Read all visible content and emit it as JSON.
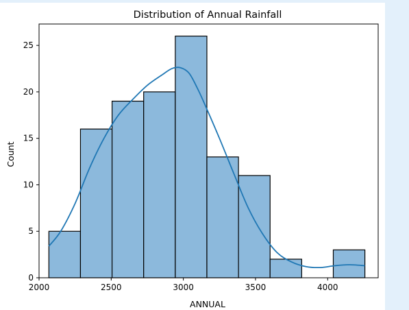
{
  "chart_data": {
    "type": "bar",
    "title": "Distribution of Annual Rainfall",
    "xlabel": "ANNUAL",
    "ylabel": "Count",
    "xlim": [
      2000,
      4350
    ],
    "ylim": [
      0,
      27.3
    ],
    "xticks": [
      2000,
      2500,
      3000,
      3500,
      4000
    ],
    "yticks": [
      0,
      5,
      10,
      15,
      20,
      25
    ],
    "bins": [
      {
        "start": 2068,
        "end": 2287,
        "count": 5
      },
      {
        "start": 2287,
        "end": 2506,
        "count": 16
      },
      {
        "start": 2506,
        "end": 2725,
        "count": 19
      },
      {
        "start": 2725,
        "end": 2944,
        "count": 20
      },
      {
        "start": 2944,
        "end": 3163,
        "count": 26
      },
      {
        "start": 3163,
        "end": 3382,
        "count": 13
      },
      {
        "start": 3382,
        "end": 3601,
        "count": 11
      },
      {
        "start": 3601,
        "end": 3820,
        "count": 2
      },
      {
        "start": 3820,
        "end": 4039,
        "count": 0
      },
      {
        "start": 4039,
        "end": 4258,
        "count": 3
      }
    ],
    "kde": {
      "x": [
        2068,
        2150,
        2250,
        2350,
        2450,
        2550,
        2650,
        2750,
        2850,
        2920,
        2980,
        3040,
        3100,
        3150,
        3250,
        3350,
        3450,
        3550,
        3650,
        3750,
        3850,
        3950,
        4050,
        4150,
        4258
      ],
      "y": [
        3.4,
        5.0,
        8.0,
        11.8,
        15.0,
        17.5,
        19.2,
        20.7,
        21.8,
        22.5,
        22.6,
        22.0,
        20.3,
        18.6,
        15.0,
        11.2,
        7.5,
        4.7,
        2.7,
        1.7,
        1.2,
        1.1,
        1.3,
        1.4,
        1.3
      ]
    },
    "colors": {
      "bar_fill": "#8cb9dc",
      "bar_edge": "#000000",
      "kde_line": "#1f77b4"
    },
    "grid": false,
    "legend": "none"
  }
}
